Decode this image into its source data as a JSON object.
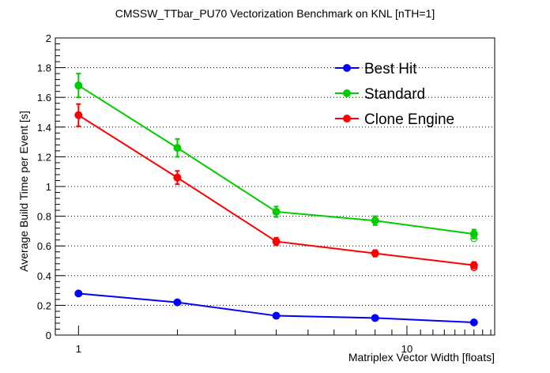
{
  "chart_data": {
    "type": "line",
    "title": "CMSSW_TTbar_PU70 Vectorization Benchmark on KNL [nTH=1]",
    "xlabel": "Matriplex Vector Width [floats]",
    "ylabel": "Average Build Time per Event [s]",
    "xscale": "log",
    "xlim": [
      0.85,
      18.5
    ],
    "ylim": [
      0,
      2
    ],
    "x": [
      1,
      2,
      4,
      8,
      16
    ],
    "x_tick_labels": [
      {
        "value": 1,
        "label": "1"
      },
      {
        "value": 10,
        "label": "10"
      }
    ],
    "y_ticks": [
      0,
      0.2,
      0.4,
      0.6,
      0.8,
      1,
      1.2,
      1.4,
      1.6,
      1.8,
      2
    ],
    "y_tick_labels": [
      "0",
      "0.2",
      "0.4",
      "0.6",
      "0.8",
      "1",
      "1.2",
      "1.4",
      "1.6",
      "1.8",
      "2"
    ],
    "grid": "horizontal-dotted",
    "legend_position": "top-right",
    "series": [
      {
        "name": "Best Hit",
        "color": "#0000ff",
        "values": [
          0.28,
          0.22,
          0.13,
          0.115,
          0.085
        ],
        "errors": [
          0.01,
          0.008,
          0.006,
          0.006,
          0.005
        ],
        "open_marker_value": null
      },
      {
        "name": "Standard",
        "color": "#00cc00",
        "values": [
          1.68,
          1.26,
          0.83,
          0.77,
          0.68
        ],
        "errors": [
          0.08,
          0.06,
          0.035,
          0.03,
          0.03
        ],
        "open_marker_value": 0.65
      },
      {
        "name": "Clone Engine",
        "color": "#ff0000",
        "values": [
          1.48,
          1.06,
          0.63,
          0.55,
          0.47
        ],
        "errors": [
          0.075,
          0.045,
          0.025,
          0.022,
          0.022
        ],
        "open_marker_value": 0.455
      }
    ]
  }
}
